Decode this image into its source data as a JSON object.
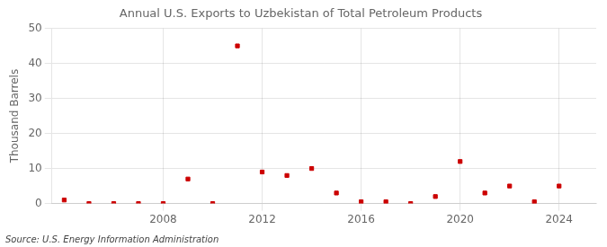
{
  "chart_data": {
    "type": "scatter",
    "title": "Annual U.S. Exports to Uzbekistan of Total Petroleum Products",
    "ylabel": "Thousand Barrels",
    "annotations": [
      "Source: U.S. Energy Information Administration"
    ],
    "x": [
      2004,
      2005,
      2006,
      2007,
      2008,
      2009,
      2010,
      2011,
      2012,
      2013,
      2014,
      2015,
      2016,
      2017,
      2018,
      2019,
      2020,
      2021,
      2022,
      2023,
      2024
    ],
    "values": [
      1,
      0,
      0,
      0,
      0,
      7,
      0,
      45,
      9,
      8,
      10,
      3,
      0.5,
      0.5,
      0,
      2,
      12,
      3,
      5,
      0.5,
      5
    ],
    "color": "#cc0000",
    "marker": "square",
    "xlim": [
      2003.5,
      2025.5
    ],
    "xticks": [
      2008,
      2012,
      2016,
      2020,
      2024
    ],
    "ylim": [
      0,
      50
    ],
    "yticks": [
      0,
      10,
      20,
      30,
      40,
      50
    ],
    "grid": true
  }
}
